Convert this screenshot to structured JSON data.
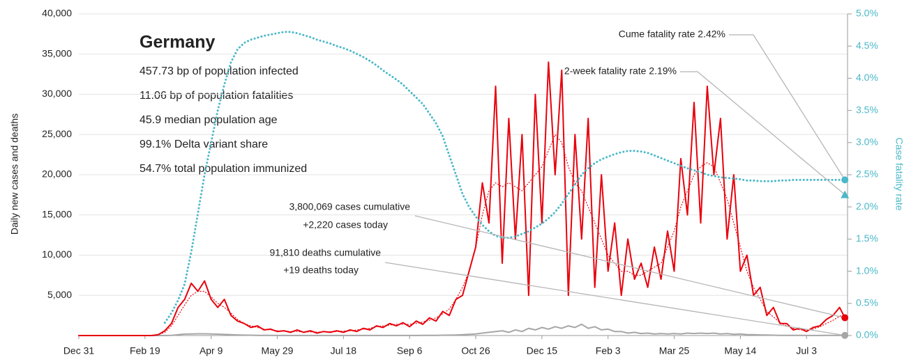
{
  "chart_data": {
    "type": "line",
    "title": "Germany",
    "info": [
      "457.73 bp of population infected",
      "11.06 bp of population fatalities",
      "45.9 median population age",
      "99.1% Delta variant share",
      "54.7% total population immunized"
    ],
    "ylabel": "Daily new cases and deaths",
    "y2label": "Case fatality rate",
    "annotations": {
      "cume": "Cume fatality rate 2.42%",
      "two_week": "2-week fatality rate 2.19%",
      "cases": [
        "3,800,069 cases cumulative",
        "+2,220 cases today"
      ],
      "deaths": [
        "91,810 deaths cumulative",
        "+19 deaths today"
      ]
    },
    "two_week_fatality_rate": 2.19,
    "x": [
      0,
      5,
      10,
      15,
      20,
      25,
      30,
      35,
      40,
      45,
      50,
      55,
      60,
      65,
      70,
      75,
      80,
      85,
      90,
      95,
      100,
      105,
      110,
      115,
      120,
      125,
      130,
      135,
      140,
      145,
      150,
      155,
      160,
      165,
      170,
      175,
      180,
      185,
      190,
      195,
      200,
      205,
      210,
      215,
      220,
      225,
      230,
      235,
      240,
      245,
      250,
      255,
      260,
      265,
      270,
      275,
      280,
      285,
      290,
      295,
      300,
      305,
      310,
      315,
      320,
      325,
      330,
      335,
      340,
      345,
      350,
      355,
      360,
      365,
      370,
      375,
      380,
      385,
      390,
      395,
      400,
      405,
      410,
      415,
      420,
      425,
      430,
      435,
      440,
      445,
      450,
      455,
      460,
      465,
      470,
      475,
      480,
      485,
      490,
      495,
      500,
      505,
      510,
      515,
      520,
      525,
      530,
      535,
      540,
      545,
      550,
      555,
      560,
      565,
      570,
      575,
      579
    ],
    "xlim": [
      0,
      581
    ],
    "xticks": [
      {
        "value": 0,
        "label": "Dec 31"
      },
      {
        "value": 50,
        "label": "Feb 19"
      },
      {
        "value": 100,
        "label": "Apr 9"
      },
      {
        "value": 150,
        "label": "May 29"
      },
      {
        "value": 200,
        "label": "Jul 18"
      },
      {
        "value": 250,
        "label": "Sep 6"
      },
      {
        "value": 300,
        "label": "Oct 26"
      },
      {
        "value": 350,
        "label": "Dec 15"
      },
      {
        "value": 400,
        "label": "Feb 3"
      },
      {
        "value": 450,
        "label": "Mar 25"
      },
      {
        "value": 500,
        "label": "May 14"
      },
      {
        "value": 550,
        "label": "Jul 3"
      }
    ],
    "ylim": [
      0,
      40000
    ],
    "yticks": [
      {
        "value": 5000,
        "label": "5,000"
      },
      {
        "value": 10000,
        "label": "10,000"
      },
      {
        "value": 15000,
        "label": "15,000"
      },
      {
        "value": 20000,
        "label": "20,000"
      },
      {
        "value": 25000,
        "label": "25,000"
      },
      {
        "value": 30000,
        "label": "30,000"
      },
      {
        "value": 35000,
        "label": "35,000"
      },
      {
        "value": 40000,
        "label": "40,000"
      }
    ],
    "y2lim": [
      0,
      5
    ],
    "y2ticks": [
      {
        "value": 0,
        "label": "0.0%"
      },
      {
        "value": 0.5,
        "label": "0.5%"
      },
      {
        "value": 1,
        "label": "1.0%"
      },
      {
        "value": 1.5,
        "label": "1.5%"
      },
      {
        "value": 2,
        "label": "2.0%"
      },
      {
        "value": 2.5,
        "label": "2.5%"
      },
      {
        "value": 3,
        "label": "3.0%"
      },
      {
        "value": 3.5,
        "label": "3.5%"
      },
      {
        "value": 4,
        "label": "4.0%"
      },
      {
        "value": 4.5,
        "label": "4.5%"
      },
      {
        "value": 5,
        "label": "5.0%"
      }
    ],
    "grid": true,
    "series": [
      {
        "color": "#e8000b",
        "line_style": "solid",
        "values": [
          0,
          0,
          0,
          0,
          0,
          0,
          0,
          0,
          0,
          0,
          0,
          0,
          100,
          600,
          1500,
          3500,
          4500,
          6500,
          5500,
          6800,
          4500,
          3500,
          4500,
          2500,
          1800,
          1500,
          1000,
          1200,
          700,
          800,
          500,
          600,
          400,
          700,
          400,
          600,
          300,
          500,
          400,
          600,
          400,
          700,
          500,
          900,
          700,
          1200,
          1000,
          1500,
          1200,
          1600,
          1100,
          1800,
          1400,
          2200,
          1800,
          3000,
          2500,
          4500,
          5000,
          8000,
          11000,
          19000,
          14000,
          31000,
          9000,
          27000,
          12000,
          25000,
          5000,
          30000,
          14000,
          34000,
          20000,
          33000,
          5000,
          25000,
          12000,
          27000,
          6000,
          20000,
          8000,
          14000,
          5000,
          12000,
          7000,
          9000,
          6000,
          11000,
          7000,
          13000,
          8000,
          22000,
          15000,
          29000,
          14000,
          31000,
          20000,
          27000,
          12000,
          20000,
          8000,
          10000,
          5000,
          6000,
          2500,
          3500,
          1500,
          1500,
          700,
          900,
          500,
          1000,
          1200,
          2000,
          2500,
          3500,
          2220
        ]
      },
      {
        "color": "#e8000b",
        "line_style": "dotted",
        "values": [
          0,
          0,
          0,
          0,
          0,
          0,
          0,
          0,
          0,
          0,
          0,
          0,
          100,
          400,
          1200,
          2500,
          3800,
          5000,
          5500,
          5500,
          4800,
          4000,
          3500,
          2800,
          2000,
          1500,
          1200,
          1000,
          800,
          700,
          600,
          550,
          500,
          500,
          450,
          450,
          420,
          450,
          480,
          500,
          550,
          600,
          700,
          800,
          900,
          1100,
          1200,
          1300,
          1400,
          1400,
          1400,
          1500,
          1700,
          1900,
          2200,
          2700,
          3300,
          4500,
          6000,
          8000,
          11000,
          15000,
          18000,
          19000,
          18500,
          19000,
          18500,
          18000,
          19000,
          20000,
          21000,
          23000,
          25000,
          24000,
          21000,
          19000,
          18000,
          16000,
          14000,
          12000,
          10000,
          9000,
          8000,
          8000,
          7500,
          7500,
          8000,
          8500,
          9000,
          11000,
          13000,
          16000,
          18000,
          20000,
          21000,
          21500,
          21000,
          19000,
          17000,
          14000,
          11000,
          8000,
          6000,
          4500,
          3000,
          2300,
          1600,
          1200,
          900,
          700,
          700,
          800,
          1100,
          1500,
          1900,
          2400,
          2600
        ]
      },
      {
        "color": "#a6a6a6",
        "line_style": "solid",
        "values": [
          0,
          0,
          0,
          0,
          0,
          0,
          0,
          0,
          0,
          0,
          0,
          0,
          0,
          5,
          30,
          100,
          180,
          200,
          220,
          220,
          200,
          170,
          140,
          110,
          80,
          50,
          40,
          30,
          20,
          15,
          10,
          8,
          6,
          8,
          5,
          7,
          5,
          6,
          5,
          6,
          5,
          7,
          6,
          7,
          8,
          7,
          9,
          8,
          10,
          9,
          8,
          10,
          15,
          20,
          30,
          40,
          50,
          70,
          100,
          150,
          200,
          300,
          400,
          500,
          600,
          400,
          700,
          500,
          900,
          700,
          1000,
          800,
          1100,
          900,
          1200,
          1000,
          1400,
          900,
          1100,
          700,
          800,
          500,
          500,
          300,
          400,
          250,
          300,
          200,
          250,
          200,
          250,
          200,
          300,
          250,
          300,
          250,
          300,
          200,
          250,
          150,
          200,
          120,
          100,
          80,
          60,
          40,
          30,
          20,
          20,
          15,
          10,
          10,
          10,
          15,
          15,
          20,
          19
        ]
      },
      {
        "color": "#4ab8c8",
        "line_style": "dotted",
        "axis": "y2",
        "values": [
          null,
          null,
          null,
          null,
          null,
          null,
          null,
          null,
          null,
          null,
          null,
          null,
          null,
          0.2,
          0.35,
          0.55,
          0.8,
          1.3,
          1.9,
          2.5,
          3.0,
          3.5,
          3.9,
          4.25,
          4.45,
          4.55,
          4.6,
          4.63,
          4.66,
          4.68,
          4.7,
          4.72,
          4.72,
          4.7,
          4.67,
          4.64,
          4.6,
          4.57,
          4.54,
          4.5,
          4.47,
          4.43,
          4.38,
          4.33,
          4.27,
          4.2,
          4.12,
          4.05,
          3.98,
          3.9,
          3.8,
          3.7,
          3.6,
          3.45,
          3.3,
          3.1,
          2.8,
          2.5,
          2.2,
          2.0,
          1.85,
          1.72,
          1.62,
          1.55,
          1.52,
          1.52,
          1.54,
          1.58,
          1.62,
          1.68,
          1.74,
          1.82,
          1.92,
          2.05,
          2.2,
          2.35,
          2.5,
          2.6,
          2.68,
          2.74,
          2.78,
          2.82,
          2.85,
          2.87,
          2.87,
          2.86,
          2.84,
          2.8,
          2.76,
          2.72,
          2.68,
          2.64,
          2.6,
          2.57,
          2.54,
          2.5,
          2.48,
          2.46,
          2.45,
          2.44,
          2.43,
          2.41,
          2.41,
          2.4,
          2.4,
          2.4,
          2.41,
          2.41,
          2.42,
          2.42,
          2.42,
          2.42,
          2.42,
          2.42,
          2.42,
          2.42,
          2.42
        ]
      }
    ]
  }
}
